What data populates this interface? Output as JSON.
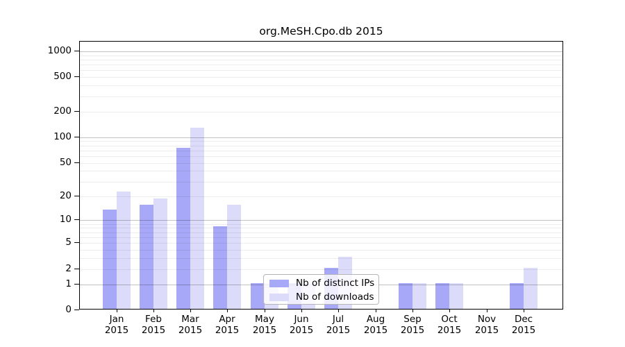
{
  "figure": {
    "title": "org.MeSH.Cpo.db 2015"
  },
  "chart_data": {
    "type": "bar",
    "title": "org.MeSH.Cpo.db 2015",
    "categories": [
      "Jan",
      "Feb",
      "Mar",
      "Apr",
      "May",
      "Jun",
      "Jul",
      "Aug",
      "Sep",
      "Oct",
      "Nov",
      "Dec"
    ],
    "year_label": "2015",
    "series": [
      {
        "name": "Nb of distinct IPs",
        "color": "#a8a8f8",
        "values": [
          13,
          15,
          72,
          8,
          1,
          1,
          2,
          0,
          1,
          1,
          0,
          1
        ]
      },
      {
        "name": "Nb of downloads",
        "color": "#dcdcfa",
        "values": [
          22,
          18,
          125,
          15,
          1,
          1,
          3,
          0,
          1,
          1,
          0,
          2
        ]
      }
    ],
    "xlabel": "",
    "ylabel": "",
    "yscale": "log1p",
    "yticks": [
      0,
      1,
      2,
      5,
      10,
      20,
      50,
      100,
      200,
      500,
      1000
    ],
    "ylim": [
      0,
      1292
    ],
    "grid": {
      "on": true,
      "major": [
        1,
        10,
        100,
        1000
      ],
      "minor_per_decade": [
        2,
        3,
        4,
        5,
        6,
        7,
        8,
        9
      ],
      "decades": [
        1,
        10,
        100
      ]
    },
    "legend": {
      "position": "lower-center",
      "entries": [
        "Nb of distinct IPs",
        "Nb of downloads"
      ]
    }
  }
}
